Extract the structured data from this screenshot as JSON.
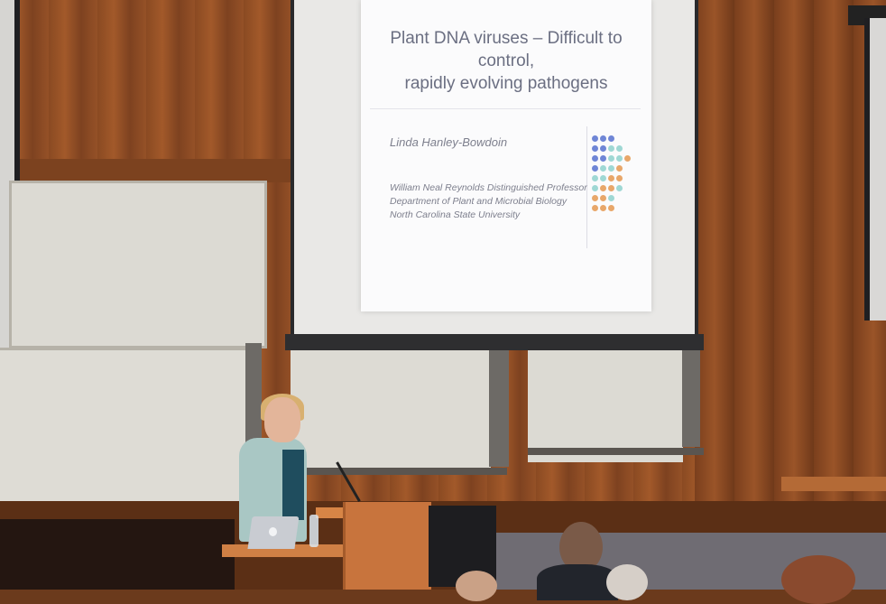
{
  "slide": {
    "title_line1": "Plant DNA viruses – Difficult to control,",
    "title_line2": "rapidly evolving pathogens",
    "presenter": "Linda Hanley-Bowdoin",
    "affiliation_line1": "William Neal Reynolds Distinguished Professor",
    "affiliation_line2": "Department of Plant and Microbial Biology",
    "affiliation_line3": "North Carolina State University"
  },
  "colors": {
    "dot_blue": "#6f86d6",
    "dot_teal": "#9fd8d4",
    "dot_orange": "#e8a76a",
    "wood": "#9a5428",
    "laptop_silver": "#c9ccd2"
  },
  "icons": {
    "laptop_logo": "apple-logo-icon"
  }
}
